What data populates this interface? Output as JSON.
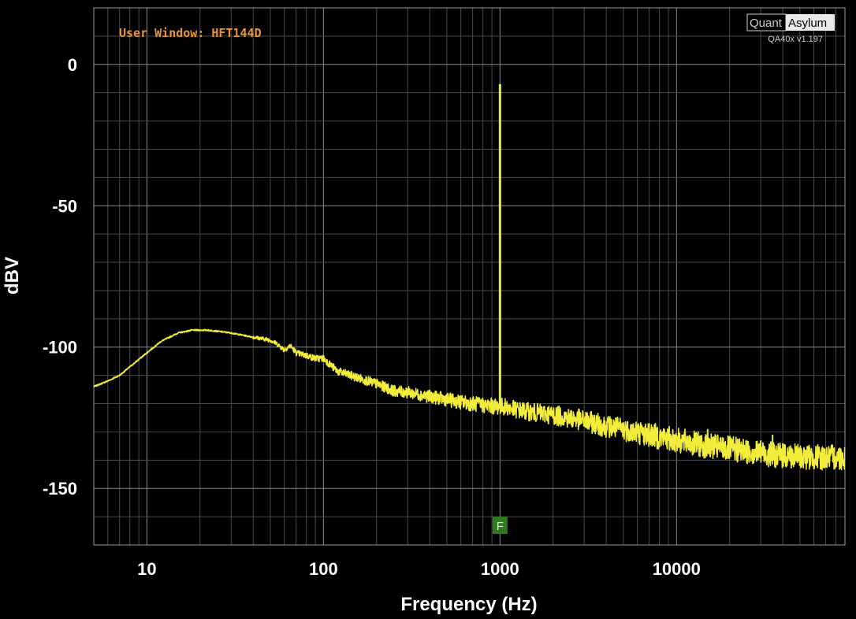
{
  "colors": {
    "background": "#000000",
    "grid_major": "#8a8a8a",
    "grid_minor": "#4a4a4a",
    "trace": "#f2ec3a",
    "window_label": "#e6953a",
    "marker": "#2f7a1e"
  },
  "overlay": {
    "window_label": "User Window: HFT144D",
    "logo_left": "Quant",
    "logo_right": "Asylum",
    "version": "QA40x v1.197",
    "marker_label": "F"
  },
  "chart_data": {
    "type": "line",
    "xscale": "log",
    "xlim": [
      5,
      90000
    ],
    "ylim": [
      -170,
      20
    ],
    "grid": true,
    "xlabel": "Frequency (Hz)",
    "ylabel": "dBV",
    "xticks": [
      10,
      100,
      1000,
      10000
    ],
    "xtick_labels": [
      "10",
      "100",
      "1000",
      "10000"
    ],
    "yticks": [
      0,
      -50,
      -100,
      -150
    ],
    "ytick_labels": [
      "0",
      "-50",
      "-100",
      "-150"
    ],
    "marker_frequency": 1000,
    "fundamental": {
      "x": 1000,
      "y": -7
    },
    "series": [
      {
        "color": "#f2ec3a",
        "x": [
          5,
          6,
          7,
          8,
          10,
          12,
          15,
          18,
          22,
          26,
          30,
          40,
          50,
          55,
          60,
          65,
          70,
          80,
          90,
          100,
          120,
          150,
          200,
          250,
          300,
          400,
          500,
          600,
          700,
          800,
          950,
          1000,
          1050,
          1200,
          1500,
          2000,
          3000,
          4000,
          5000,
          7000,
          10000,
          15000,
          20000,
          30000,
          40000,
          60000,
          90000
        ],
        "y": [
          -114,
          -112,
          -110,
          -107,
          -102,
          -98,
          -95,
          -94,
          -94,
          -94.5,
          -95,
          -96.5,
          -97.5,
          -99,
          -101,
          -99.5,
          -102,
          -103,
          -104,
          -104,
          -108.5,
          -110.5,
          -113,
          -115.5,
          -116,
          -117.5,
          -118.5,
          -119.5,
          -120,
          -120.5,
          -121,
          -121,
          -121,
          -122,
          -123,
          -124,
          -126,
          -128,
          -129,
          -131,
          -133,
          -135,
          -136,
          -137.5,
          -138.5,
          -139,
          -139
        ]
      }
    ],
    "spurs": [
      {
        "x": 7000,
        "y": -127
      },
      {
        "x": 10000,
        "y": -131
      },
      {
        "x": 15000,
        "y": -129
      },
      {
        "x": 16000,
        "y": -132
      },
      {
        "x": 20000,
        "y": -134
      },
      {
        "x": 30000,
        "y": -133
      },
      {
        "x": 35000,
        "y": -131
      },
      {
        "x": 40000,
        "y": -134
      }
    ]
  }
}
